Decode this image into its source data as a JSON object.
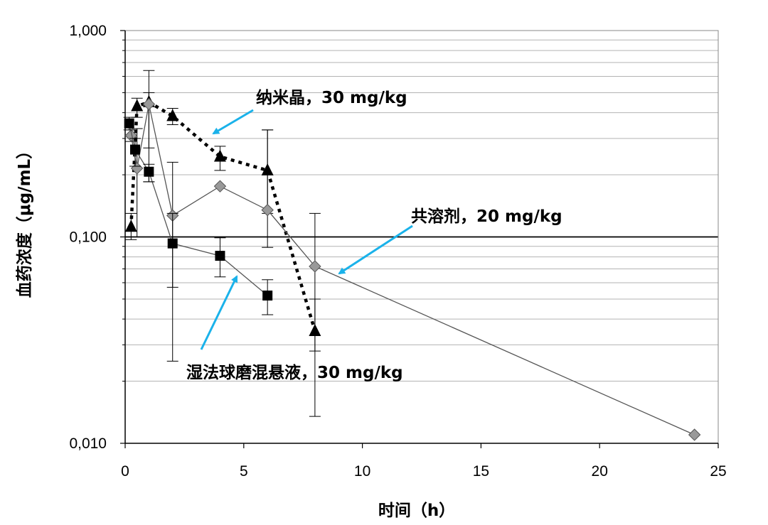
{
  "chart_data": {
    "type": "scatter",
    "title": "",
    "xlabel": "时间（h）",
    "ylabel": "血药浓度（μg/mL）",
    "xlim": [
      0,
      25
    ],
    "ylim": [
      0.01,
      1
    ],
    "yscale": "log",
    "grid": "horizontal minor and major gridlines",
    "x_ticks": [
      "0",
      "5",
      "10",
      "15",
      "20",
      "25"
    ],
    "y_ticks": [
      "0,010",
      "0,100",
      "1,000"
    ],
    "series": [
      {
        "marker": "triangle",
        "line": "dotted",
        "color": "#000000",
        "points": [
          {
            "x": 0.25,
            "y": 0.112,
            "err_low": 0.097,
            "err_high": 0.13
          },
          {
            "x": 0.5,
            "y": 0.43,
            "err_low": 0.38,
            "err_high": 0.47
          },
          {
            "x": 1,
            "y": 0.45,
            "err_low": 0.27,
            "err_high": 0.64
          },
          {
            "x": 2,
            "y": 0.385,
            "err_low": 0.35,
            "err_high": 0.42
          },
          {
            "x": 4,
            "y": 0.245,
            "err_low": 0.21,
            "err_high": 0.275
          },
          {
            "x": 6,
            "y": 0.21,
            "err_low": 0.13,
            "err_high": 0.33
          },
          {
            "x": 8,
            "y": 0.035,
            "err_low": 0.028,
            "err_high": 0.05
          }
        ]
      },
      {
        "marker": "diamond",
        "line": "solid",
        "color": "#999999",
        "points": [
          {
            "x": 0.25,
            "y": 0.31,
            "err_low": 0.29,
            "err_high": 0.33
          },
          {
            "x": 0.5,
            "y": 0.215,
            "err_low": 0.1,
            "err_high": 0.335
          },
          {
            "x": 1,
            "y": 0.44,
            "err_low": 0.185,
            "err_high": 0.5
          },
          {
            "x": 2,
            "y": 0.127,
            "err_low": 0.025,
            "err_high": 0.23
          },
          {
            "x": 4,
            "y": 0.176
          },
          {
            "x": 6,
            "y": 0.135,
            "err_low": 0.089,
            "err_high": 0.33
          },
          {
            "x": 8,
            "y": 0.072,
            "err_low": 0.0135,
            "err_high": 0.13
          },
          {
            "x": 24,
            "y": 0.011
          }
        ]
      },
      {
        "marker": "square",
        "line": "solid",
        "color": "#000000",
        "points": [
          {
            "x": 0.17,
            "y": 0.355,
            "err_low": 0.33,
            "err_high": 0.38
          },
          {
            "x": 0.42,
            "y": 0.265,
            "err_low": 0.22,
            "err_high": 0.3
          },
          {
            "x": 1,
            "y": 0.207,
            "err_low": 0.185,
            "err_high": 0.225
          },
          {
            "x": 2,
            "y": 0.093,
            "err_low": 0.057,
            "err_high": 0.13
          },
          {
            "x": 4,
            "y": 0.081,
            "err_low": 0.064,
            "err_high": 0.099
          },
          {
            "x": 6,
            "y": 0.052,
            "err_low": 0.042,
            "err_high": 0.062
          }
        ]
      }
    ],
    "annotations": [
      {
        "text": "纳米晶，30 mg/kg",
        "series": 0
      },
      {
        "text": "共溶剂，20 mg/kg",
        "series": 1
      },
      {
        "text": "湿法球磨混悬液，30 mg/kg",
        "series": 2
      }
    ],
    "annotation_arrow_color": "#1ab2ea"
  }
}
